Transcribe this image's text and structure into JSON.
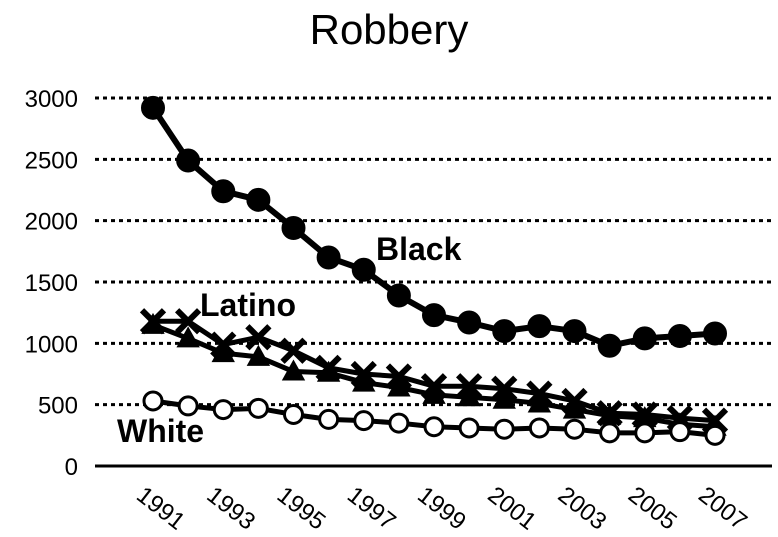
{
  "chart_data": {
    "type": "line",
    "title": "Robbery",
    "xlabel": "",
    "ylabel": "",
    "x": [
      1991,
      1992,
      1993,
      1994,
      1995,
      1996,
      1997,
      1998,
      1999,
      2000,
      2001,
      2002,
      2003,
      2004,
      2005,
      2006,
      2007
    ],
    "x_tick_labels": [
      "1991",
      "1993",
      "1995",
      "1997",
      "1999",
      "2001",
      "2003",
      "2005",
      "2007"
    ],
    "y_tick_labels": [
      "0",
      "500",
      "1000",
      "1500",
      "2000",
      "2500",
      "3000"
    ],
    "ylim": [
      0,
      3000
    ],
    "grid": "horizontal dotted",
    "series": [
      {
        "name": "Black",
        "marker": "filled-circle",
        "values": [
          2920,
          2490,
          2240,
          2170,
          1940,
          1700,
          1600,
          1390,
          1230,
          1170,
          1100,
          1140,
          1100,
          980,
          1040,
          1060,
          1080
        ]
      },
      {
        "name": "Latino",
        "marker": "x",
        "values": [
          1180,
          1180,
          990,
          1050,
          940,
          800,
          750,
          730,
          650,
          650,
          630,
          590,
          530,
          430,
          420,
          390,
          370
        ]
      },
      {
        "name": "",
        "marker": "triangle",
        "values": [
          1150,
          1040,
          920,
          890,
          770,
          760,
          680,
          640,
          580,
          560,
          540,
          510,
          460,
          410,
          390,
          340,
          320
        ]
      },
      {
        "name": "White",
        "marker": "open-circle",
        "values": [
          530,
          490,
          460,
          470,
          420,
          380,
          370,
          350,
          320,
          310,
          300,
          310,
          300,
          270,
          270,
          280,
          250
        ]
      }
    ]
  },
  "colors": {
    "line": "#000000",
    "background": "#ffffff"
  }
}
